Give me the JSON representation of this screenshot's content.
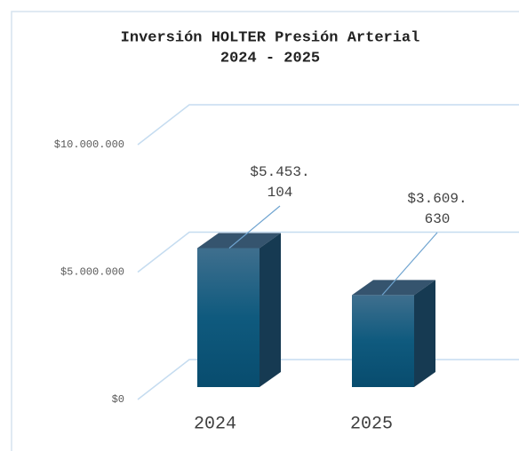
{
  "chart_data": {
    "type": "bar3d",
    "title": "Inversión HOLTER Presión Arterial",
    "subtitle": "2024 - 2025",
    "categories": [
      "2024",
      "2025"
    ],
    "values": [
      5453104,
      3609630
    ],
    "value_labels": [
      "$5.453.104",
      "$3.609.630"
    ],
    "color": "#0b5275",
    "ylim": [
      0,
      10000000
    ],
    "yticks": [
      {
        "value": 0,
        "label": "$0"
      },
      {
        "value": 5000000,
        "label": "$5.000.000"
      },
      {
        "value": 10000000,
        "label": "$10.000.000"
      }
    ],
    "grid": true
  }
}
